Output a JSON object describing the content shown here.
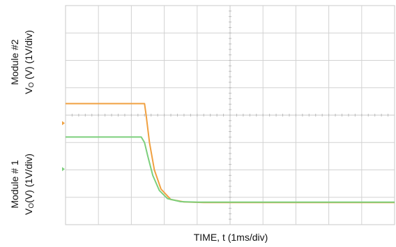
{
  "chart_data": {
    "type": "line",
    "title": "",
    "xlabel": "TIME, t (1ms/div)",
    "ylabel_top": {
      "line1": "Module #2",
      "line2_prefix": "V",
      "line2_sub": "O",
      "line2_suffix": " (V) (1V/div)"
    },
    "ylabel_bottom": {
      "line1": "Module # 1",
      "line2_prefix": "V",
      "line2_sub": "O",
      "line2_suffix": "(V) (1V/div)"
    },
    "x_divisions": 10,
    "y_divisions": 8,
    "grid": true,
    "xlim": [
      0,
      10
    ],
    "ylim": [
      0,
      8
    ],
    "series": [
      {
        "color": "#f0a040",
        "x": [
          0,
          2.4,
          2.45,
          2.55,
          2.7,
          2.9,
          3.2,
          3.6,
          4.2,
          10
        ],
        "y": [
          4.42,
          4.42,
          4.0,
          3.0,
          2.0,
          1.3,
          0.92,
          0.83,
          0.81,
          0.81
        ]
      },
      {
        "color": "#7ccf7c",
        "x": [
          0,
          2.3,
          2.4,
          2.5,
          2.65,
          2.85,
          3.1,
          3.5,
          4.0,
          10
        ],
        "y": [
          3.2,
          3.2,
          3.0,
          2.5,
          1.8,
          1.25,
          0.95,
          0.84,
          0.82,
          0.82
        ]
      }
    ],
    "markers": {
      "top_marker_color": "#f0a040",
      "bottom_marker_color": "#7ccf7c"
    }
  }
}
